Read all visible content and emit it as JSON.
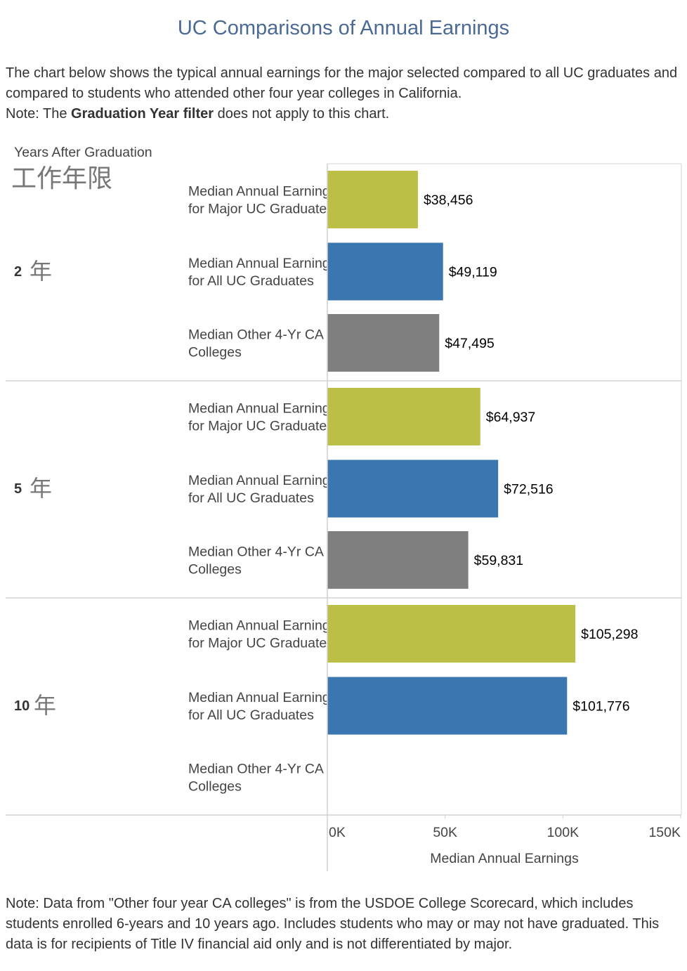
{
  "title": "UC Comparisons of Annual Earnings",
  "intro": {
    "line1": "The chart below shows the typical annual earnings for the major selected compared to all UC graduates and compared to students who attended other four year colleges in California.",
    "note_prefix": "Note: The ",
    "note_bold": "Graduation Year filter",
    "note_suffix": " does not apply to this chart."
  },
  "footnote": "Note: Data from \"Other four year CA colleges\" is from the USDOE College Scorecard, which includes students enrolled 6-years and 10 years ago. Includes students who may or may not have graduated. This data is for recipients of Title IV financial aid only and is not differentiated by major.",
  "chart_data": {
    "type": "bar",
    "orientation": "horizontal",
    "row_header": "Years After Graduation",
    "row_header_secondary": "工作年限",
    "xlabel": "Median Annual Earnings",
    "xlim": [
      0,
      150000
    ],
    "xticks": [
      {
        "value": 0,
        "label": "0K"
      },
      {
        "value": 50000,
        "label": "50K"
      },
      {
        "value": 100000,
        "label": "100K"
      },
      {
        "value": 150000,
        "label": "150K"
      }
    ],
    "categories": [
      "Median Annual Earnings for Major UC Graduates",
      "Median Annual Earnings for All UC Graduates",
      "Median Other 4-Yr CA Colleges"
    ],
    "category_colors": [
      "#bcbf45",
      "#3a76b0",
      "#7f7f7f"
    ],
    "groups": [
      {
        "num": "2",
        "unit": "年",
        "values": [
          38456,
          49119,
          47495
        ],
        "labels": [
          "$38,456",
          "$49,119",
          "$47,495"
        ]
      },
      {
        "num": "5",
        "unit": "年",
        "values": [
          64937,
          72516,
          59831
        ],
        "labels": [
          "$64,937",
          "$72,516",
          "$59,831"
        ]
      },
      {
        "num": "10",
        "unit": "年",
        "values": [
          105298,
          101776,
          null
        ],
        "labels": [
          "$105,298",
          "$101,776",
          ""
        ]
      }
    ],
    "grid": false,
    "legend": "none"
  },
  "colors": {
    "title": "#4a6a95",
    "major": "#bcbf45",
    "all_uc": "#3a76b0",
    "other": "#7f7f7f"
  }
}
